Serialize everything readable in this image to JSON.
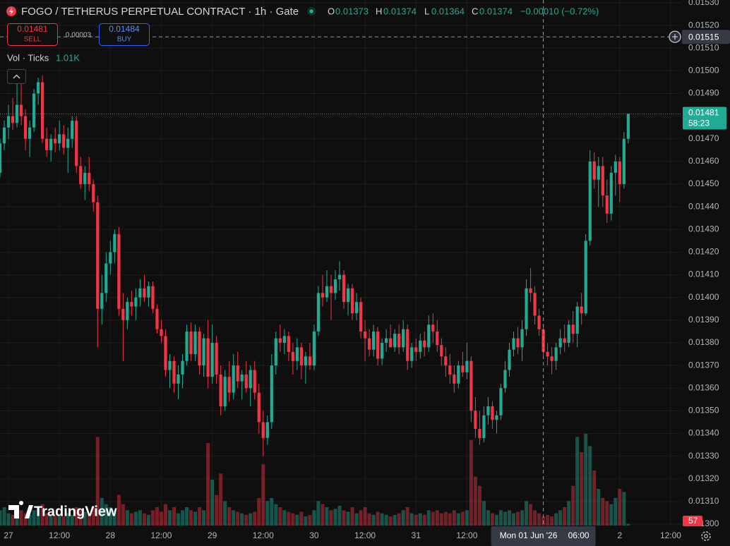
{
  "header": {
    "title": "FOGO / TETHERUS PERPETUAL CONTRACT · 1h · Gate",
    "ohlc": {
      "o_label": "O",
      "o": "0.01373",
      "h_label": "H",
      "h": "0.01374",
      "l_label": "L",
      "l": "0.01364",
      "c_label": "C",
      "c": "0.01374",
      "change": "−0.00010 (−0.72%)"
    },
    "sell": {
      "price": "0.01481",
      "label": "SELL"
    },
    "spread": "0.00003",
    "buy": {
      "price": "0.01484",
      "label": "BUY"
    },
    "volume_legend": {
      "label": "Vol · Ticks",
      "value": "1.01K"
    },
    "logo": "TradingView"
  },
  "chart_data": {
    "type": "candlestick",
    "up_color": "#22ab94",
    "down_color": "#f23645",
    "grid": true,
    "xlim": [
      -2,
      158.5
    ],
    "xticks": [
      {
        "value": 0,
        "label": "27"
      },
      {
        "value": 12,
        "label": "12:00"
      },
      {
        "value": 24,
        "label": "28"
      },
      {
        "value": 36,
        "label": "12:00"
      },
      {
        "value": 48,
        "label": "29"
      },
      {
        "value": 60,
        "label": "12:00"
      },
      {
        "value": 72,
        "label": "30"
      },
      {
        "value": 84,
        "label": "12:00"
      },
      {
        "value": 96,
        "label": "31"
      },
      {
        "value": 108,
        "label": "12:00"
      },
      {
        "value": 144,
        "label": "2"
      },
      {
        "value": 156,
        "label": "12:00"
      }
    ],
    "ylim": [
      0.013,
      0.0153
    ],
    "yticks": [
      {
        "value": 0.0153,
        "label": "0.01530"
      },
      {
        "value": 0.0152,
        "label": "0.01520"
      },
      {
        "value": 0.0151,
        "label": "0.01510"
      },
      {
        "value": 0.015,
        "label": "0.01500"
      },
      {
        "value": 0.0149,
        "label": "0.01490"
      },
      {
        "value": 0.0148,
        "label": "0.01480"
      },
      {
        "value": 0.0147,
        "label": "0.01470"
      },
      {
        "value": 0.0146,
        "label": "0.01460"
      },
      {
        "value": 0.0145,
        "label": "0.01450"
      },
      {
        "value": 0.0144,
        "label": "0.01440"
      },
      {
        "value": 0.0143,
        "label": "0.01430"
      },
      {
        "value": 0.0142,
        "label": "0.01420"
      },
      {
        "value": 0.0141,
        "label": "0.01410"
      },
      {
        "value": 0.014,
        "label": "0.01400"
      },
      {
        "value": 0.0139,
        "label": "0.01390"
      },
      {
        "value": 0.0138,
        "label": "0.01380"
      },
      {
        "value": 0.0137,
        "label": "0.01370"
      },
      {
        "value": 0.0136,
        "label": "0.01360"
      },
      {
        "value": 0.0135,
        "label": "0.01350"
      },
      {
        "value": 0.0134,
        "label": "0.01340"
      },
      {
        "value": 0.0133,
        "label": "0.01330"
      },
      {
        "value": 0.0132,
        "label": "0.01320"
      },
      {
        "value": 0.0131,
        "label": "0.01310"
      },
      {
        "value": 0.013,
        "label": "0.01300"
      }
    ],
    "volume_lim": [
      0,
      3000
    ],
    "crosshair": {
      "price": 0.01515,
      "time": {
        "value": 126,
        "label": "Mon 01 Jun '26"
      },
      "clock": "06:00"
    },
    "countdown": "58:23",
    "candles": [
      [
        -2,
        0.01455,
        0.0147,
        0.01453,
        0.01468,
        500
      ],
      [
        -1,
        0.01468,
        0.01478,
        0.01465,
        0.01475,
        600
      ],
      [
        0,
        0.01475,
        0.01485,
        0.0147,
        0.0148,
        400
      ],
      [
        1,
        0.0148,
        0.01488,
        0.01474,
        0.01477,
        350
      ],
      [
        2,
        0.01477,
        0.015,
        0.01475,
        0.01485,
        450
      ],
      [
        3,
        0.01485,
        0.01495,
        0.01476,
        0.0148,
        500
      ],
      [
        4,
        0.0148,
        0.01483,
        0.01465,
        0.0147,
        400
      ],
      [
        5,
        0.0147,
        0.01478,
        0.01462,
        0.01475,
        350
      ],
      [
        6,
        0.01475,
        0.01492,
        0.01473,
        0.0149,
        500
      ],
      [
        7,
        0.0149,
        0.01497,
        0.01485,
        0.01495,
        600
      ],
      [
        8,
        0.01495,
        0.01498,
        0.01468,
        0.0147,
        700
      ],
      [
        9,
        0.0147,
        0.01475,
        0.01462,
        0.01465,
        400
      ],
      [
        10,
        0.01465,
        0.01472,
        0.0146,
        0.0147,
        350
      ],
      [
        11,
        0.0147,
        0.01475,
        0.01464,
        0.01468,
        300
      ],
      [
        12,
        0.01468,
        0.01478,
        0.01465,
        0.01472,
        320
      ],
      [
        13,
        0.01472,
        0.01476,
        0.01463,
        0.01466,
        300
      ],
      [
        14,
        0.01466,
        0.01475,
        0.01455,
        0.0147,
        400
      ],
      [
        15,
        0.0147,
        0.0148,
        0.01466,
        0.01478,
        350
      ],
      [
        16,
        0.01478,
        0.0148,
        0.01455,
        0.01458,
        600
      ],
      [
        17,
        0.01458,
        0.01462,
        0.01448,
        0.0145,
        500
      ],
      [
        18,
        0.0145,
        0.01458,
        0.01443,
        0.01455,
        450
      ],
      [
        19,
        0.01455,
        0.01462,
        0.01447,
        0.0145,
        400
      ],
      [
        20,
        0.0145,
        0.01452,
        0.01438,
        0.01442,
        600
      ],
      [
        21,
        0.01442,
        0.01445,
        0.01378,
        0.01395,
        2900
      ],
      [
        22,
        0.01395,
        0.0141,
        0.01388,
        0.01402,
        900
      ],
      [
        23,
        0.01402,
        0.0142,
        0.01398,
        0.01415,
        700
      ],
      [
        24,
        0.01415,
        0.01425,
        0.0141,
        0.0142,
        600
      ],
      [
        25,
        0.0142,
        0.0143,
        0.01415,
        0.01428,
        500
      ],
      [
        26,
        0.01428,
        0.01431,
        0.01392,
        0.01395,
        1000
      ],
      [
        27,
        0.01395,
        0.01402,
        0.01372,
        0.0139,
        700
      ],
      [
        28,
        0.0139,
        0.014,
        0.01386,
        0.01398,
        500
      ],
      [
        29,
        0.01398,
        0.01403,
        0.01392,
        0.01396,
        400
      ],
      [
        30,
        0.01396,
        0.01404,
        0.0139,
        0.014,
        450
      ],
      [
        31,
        0.014,
        0.01408,
        0.01396,
        0.01404,
        500
      ],
      [
        32,
        0.01404,
        0.0141,
        0.01398,
        0.014,
        400
      ],
      [
        33,
        0.014,
        0.01407,
        0.01396,
        0.01405,
        350
      ],
      [
        34,
        0.01405,
        0.01407,
        0.01393,
        0.01395,
        500
      ],
      [
        35,
        0.01395,
        0.01397,
        0.01384,
        0.01386,
        600
      ],
      [
        36,
        0.01386,
        0.0139,
        0.0138,
        0.01383,
        450
      ],
      [
        37,
        0.01383,
        0.01386,
        0.01365,
        0.01368,
        700
      ],
      [
        38,
        0.01368,
        0.01375,
        0.0136,
        0.01372,
        500
      ],
      [
        39,
        0.01372,
        0.01374,
        0.01358,
        0.01362,
        600
      ],
      [
        40,
        0.01362,
        0.0137,
        0.01355,
        0.01366,
        400
      ],
      [
        41,
        0.01366,
        0.01375,
        0.0136,
        0.01372,
        500
      ],
      [
        42,
        0.01372,
        0.01388,
        0.0137,
        0.01385,
        600
      ],
      [
        43,
        0.01385,
        0.01389,
        0.01372,
        0.01375,
        500
      ],
      [
        44,
        0.01375,
        0.01388,
        0.01372,
        0.01385,
        450
      ],
      [
        45,
        0.01385,
        0.01387,
        0.01366,
        0.0137,
        600
      ],
      [
        46,
        0.0137,
        0.01384,
        0.01365,
        0.01382,
        500
      ],
      [
        47,
        0.01382,
        0.0139,
        0.0136,
        0.01365,
        2700
      ],
      [
        48,
        0.01365,
        0.01388,
        0.01362,
        0.0138,
        1500
      ],
      [
        49,
        0.0138,
        0.01383,
        0.01362,
        0.01366,
        1000
      ],
      [
        50,
        0.01366,
        0.0137,
        0.01348,
        0.01352,
        1700
      ],
      [
        51,
        0.01352,
        0.01368,
        0.0135,
        0.01365,
        800
      ],
      [
        52,
        0.01365,
        0.01372,
        0.01354,
        0.01358,
        600
      ],
      [
        53,
        0.01358,
        0.01375,
        0.01355,
        0.0137,
        500
      ],
      [
        54,
        0.0137,
        0.01376,
        0.0136,
        0.01363,
        450
      ],
      [
        55,
        0.01363,
        0.01368,
        0.01355,
        0.01366,
        400
      ],
      [
        56,
        0.01366,
        0.01372,
        0.01358,
        0.0136,
        350
      ],
      [
        57,
        0.0136,
        0.0137,
        0.01352,
        0.01368,
        400
      ],
      [
        58,
        0.01368,
        0.01372,
        0.01355,
        0.01358,
        450
      ],
      [
        59,
        0.01358,
        0.01362,
        0.0134,
        0.01345,
        900
      ],
      [
        60,
        0.01345,
        0.0135,
        0.0133,
        0.01338,
        2000
      ],
      [
        61,
        0.01338,
        0.01348,
        0.01335,
        0.01345,
        800
      ],
      [
        62,
        0.01345,
        0.01375,
        0.01342,
        0.0137,
        900
      ],
      [
        63,
        0.0137,
        0.01385,
        0.01366,
        0.01382,
        700
      ],
      [
        64,
        0.01382,
        0.01388,
        0.01376,
        0.0138,
        600
      ],
      [
        65,
        0.0138,
        0.01386,
        0.01375,
        0.01383,
        500
      ],
      [
        66,
        0.01383,
        0.01385,
        0.01372,
        0.01376,
        450
      ],
      [
        67,
        0.01376,
        0.0138,
        0.01366,
        0.01372,
        400
      ],
      [
        68,
        0.01372,
        0.01382,
        0.01368,
        0.01378,
        350
      ],
      [
        69,
        0.01378,
        0.0138,
        0.01364,
        0.0137,
        450
      ],
      [
        70,
        0.0137,
        0.01376,
        0.01362,
        0.01374,
        300
      ],
      [
        71,
        0.01374,
        0.0138,
        0.01368,
        0.0137,
        350
      ],
      [
        72,
        0.0137,
        0.01388,
        0.01368,
        0.01385,
        500
      ],
      [
        73,
        0.01385,
        0.01405,
        0.01383,
        0.01402,
        800
      ],
      [
        74,
        0.01402,
        0.0141,
        0.01396,
        0.014,
        700
      ],
      [
        75,
        0.014,
        0.01412,
        0.01398,
        0.01405,
        600
      ],
      [
        76,
        0.01405,
        0.0141,
        0.0139,
        0.01402,
        500
      ],
      [
        77,
        0.01402,
        0.01412,
        0.01399,
        0.01408,
        550
      ],
      [
        78,
        0.01408,
        0.01416,
        0.01403,
        0.0141,
        650
      ],
      [
        79,
        0.0141,
        0.01412,
        0.01395,
        0.01398,
        500
      ],
      [
        80,
        0.01398,
        0.01406,
        0.01392,
        0.01404,
        450
      ],
      [
        81,
        0.01404,
        0.01406,
        0.0139,
        0.01393,
        600
      ],
      [
        82,
        0.01393,
        0.01402,
        0.0139,
        0.01398,
        400
      ],
      [
        83,
        0.01398,
        0.014,
        0.01382,
        0.01385,
        500
      ],
      [
        84,
        0.01385,
        0.0139,
        0.01372,
        0.01382,
        600
      ],
      [
        85,
        0.01382,
        0.01386,
        0.01374,
        0.01377,
        400
      ],
      [
        86,
        0.01377,
        0.01388,
        0.01374,
        0.01385,
        350
      ],
      [
        87,
        0.01385,
        0.01387,
        0.0137,
        0.01373,
        450
      ],
      [
        88,
        0.01373,
        0.01382,
        0.0137,
        0.0138,
        400
      ],
      [
        89,
        0.0138,
        0.01386,
        0.01376,
        0.01382,
        350
      ],
      [
        90,
        0.01382,
        0.01388,
        0.01378,
        0.01378,
        300
      ],
      [
        91,
        0.01378,
        0.01386,
        0.01376,
        0.01384,
        350
      ],
      [
        92,
        0.01384,
        0.01388,
        0.01375,
        0.01378,
        400
      ],
      [
        93,
        0.01378,
        0.0139,
        0.01376,
        0.01386,
        500
      ],
      [
        94,
        0.01386,
        0.01388,
        0.01368,
        0.01372,
        600
      ],
      [
        95,
        0.01372,
        0.0138,
        0.01369,
        0.01378,
        400
      ],
      [
        96,
        0.01378,
        0.01382,
        0.01372,
        0.01376,
        350
      ],
      [
        97,
        0.01376,
        0.01384,
        0.01373,
        0.01381,
        400
      ],
      [
        98,
        0.01381,
        0.01385,
        0.01374,
        0.01378,
        350
      ],
      [
        99,
        0.01378,
        0.01392,
        0.01376,
        0.01388,
        500
      ],
      [
        100,
        0.01388,
        0.01393,
        0.0138,
        0.01385,
        450
      ],
      [
        101,
        0.01385,
        0.0139,
        0.01376,
        0.01379,
        500
      ],
      [
        102,
        0.01379,
        0.01382,
        0.0137,
        0.01374,
        400
      ],
      [
        103,
        0.01374,
        0.01378,
        0.01365,
        0.0137,
        450
      ],
      [
        104,
        0.0137,
        0.01375,
        0.01362,
        0.01366,
        400
      ],
      [
        105,
        0.01366,
        0.0137,
        0.01358,
        0.01362,
        500
      ],
      [
        106,
        0.01362,
        0.01372,
        0.0136,
        0.0137,
        400
      ],
      [
        107,
        0.0137,
        0.01376,
        0.01365,
        0.01367,
        450
      ],
      [
        108,
        0.01367,
        0.0138,
        0.01364,
        0.01372,
        500
      ],
      [
        109,
        0.01372,
        0.01374,
        0.01345,
        0.0135,
        2800
      ],
      [
        110,
        0.0135,
        0.01356,
        0.01338,
        0.01342,
        1600
      ],
      [
        111,
        0.01342,
        0.0135,
        0.01335,
        0.01338,
        1300
      ],
      [
        112,
        0.01338,
        0.01352,
        0.01336,
        0.01348,
        800
      ],
      [
        113,
        0.01348,
        0.01356,
        0.01344,
        0.01352,
        500
      ],
      [
        114,
        0.01352,
        0.01354,
        0.01342,
        0.01346,
        400
      ],
      [
        115,
        0.01346,
        0.0135,
        0.0134,
        0.01348,
        350
      ],
      [
        116,
        0.01348,
        0.01362,
        0.01346,
        0.0136,
        500
      ],
      [
        117,
        0.0136,
        0.01372,
        0.01358,
        0.01368,
        450
      ],
      [
        118,
        0.01368,
        0.0138,
        0.01365,
        0.01377,
        500
      ],
      [
        119,
        0.01377,
        0.01385,
        0.01374,
        0.01382,
        400
      ],
      [
        120,
        0.01382,
        0.01387,
        0.01375,
        0.01378,
        450
      ],
      [
        121,
        0.01378,
        0.0139,
        0.01372,
        0.01386,
        500
      ],
      [
        122,
        0.01386,
        0.01408,
        0.01383,
        0.01404,
        800
      ],
      [
        123,
        0.01404,
        0.01413,
        0.01398,
        0.01402,
        700
      ],
      [
        124,
        0.01402,
        0.01405,
        0.01388,
        0.01392,
        500
      ],
      [
        125,
        0.01392,
        0.01395,
        0.01383,
        0.01386,
        400
      ],
      [
        126,
        0.01386,
        0.01388,
        0.01374,
        0.01376,
        300
      ],
      [
        127,
        0.01376,
        0.0138,
        0.0137,
        0.01374,
        350
      ],
      [
        128,
        0.01374,
        0.01378,
        0.01366,
        0.01372,
        300
      ],
      [
        129,
        0.01372,
        0.0138,
        0.01368,
        0.01378,
        400
      ],
      [
        130,
        0.01378,
        0.01386,
        0.01375,
        0.01382,
        500
      ],
      [
        131,
        0.01382,
        0.01388,
        0.01376,
        0.0138,
        600
      ],
      [
        132,
        0.0138,
        0.0139,
        0.01378,
        0.01388,
        800
      ],
      [
        133,
        0.01388,
        0.01394,
        0.0138,
        0.01384,
        1300
      ],
      [
        134,
        0.01384,
        0.01398,
        0.01378,
        0.01396,
        2900
      ],
      [
        135,
        0.01396,
        0.01402,
        0.01388,
        0.01393,
        2400
      ],
      [
        136,
        0.01393,
        0.01428,
        0.01392,
        0.01425,
        3000
      ],
      [
        137,
        0.01425,
        0.01465,
        0.01423,
        0.0146,
        2600
      ],
      [
        138,
        0.0146,
        0.01464,
        0.01448,
        0.01452,
        1800
      ],
      [
        139,
        0.01452,
        0.01462,
        0.0144,
        0.01458,
        1200
      ],
      [
        140,
        0.01458,
        0.01462,
        0.0144,
        0.01445,
        900
      ],
      [
        141,
        0.01445,
        0.01452,
        0.01433,
        0.01437,
        800
      ],
      [
        142,
        0.01437,
        0.01458,
        0.01434,
        0.01455,
        700
      ],
      [
        143,
        0.01455,
        0.01463,
        0.01445,
        0.0146,
        900
      ],
      [
        144,
        0.0146,
        0.01462,
        0.01442,
        0.0145,
        1200
      ],
      [
        145,
        0.0145,
        0.01473,
        0.01448,
        0.0147,
        1100
      ],
      [
        146,
        0.0147,
        0.01481,
        0.01468,
        0.01481,
        57
      ]
    ]
  }
}
